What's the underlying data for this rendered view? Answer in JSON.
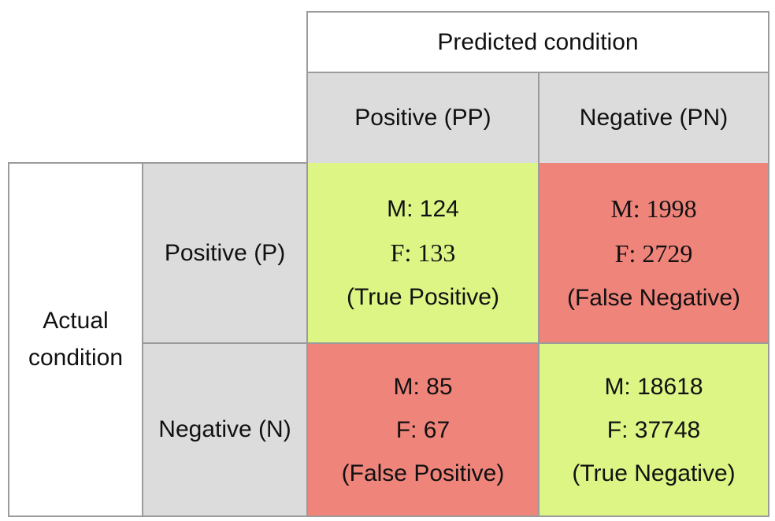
{
  "predicted_header": "Predicted condition",
  "predicted_positive": "Positive (PP)",
  "predicted_negative": "Negative (PN)",
  "actual_header": "Actual condition",
  "actual_positive": "Positive (P)",
  "actual_negative": "Negative (N)",
  "cells": {
    "tp": {
      "m": "M: 124",
      "f": "F: 133",
      "label": "(True Positive)"
    },
    "fn": {
      "m": "M: 1998",
      "f": "F: 2729",
      "label": "(False Negative)"
    },
    "fp": {
      "m": "M: 85",
      "f": "F: 67",
      "label": "(False Positive)"
    },
    "tn": {
      "m": "M: 18618",
      "f": "F: 37748",
      "label": "(True Negative)"
    }
  },
  "colors": {
    "correct": "#dcf585",
    "incorrect": "#ef847b",
    "header": "#dcdcdc"
  }
}
